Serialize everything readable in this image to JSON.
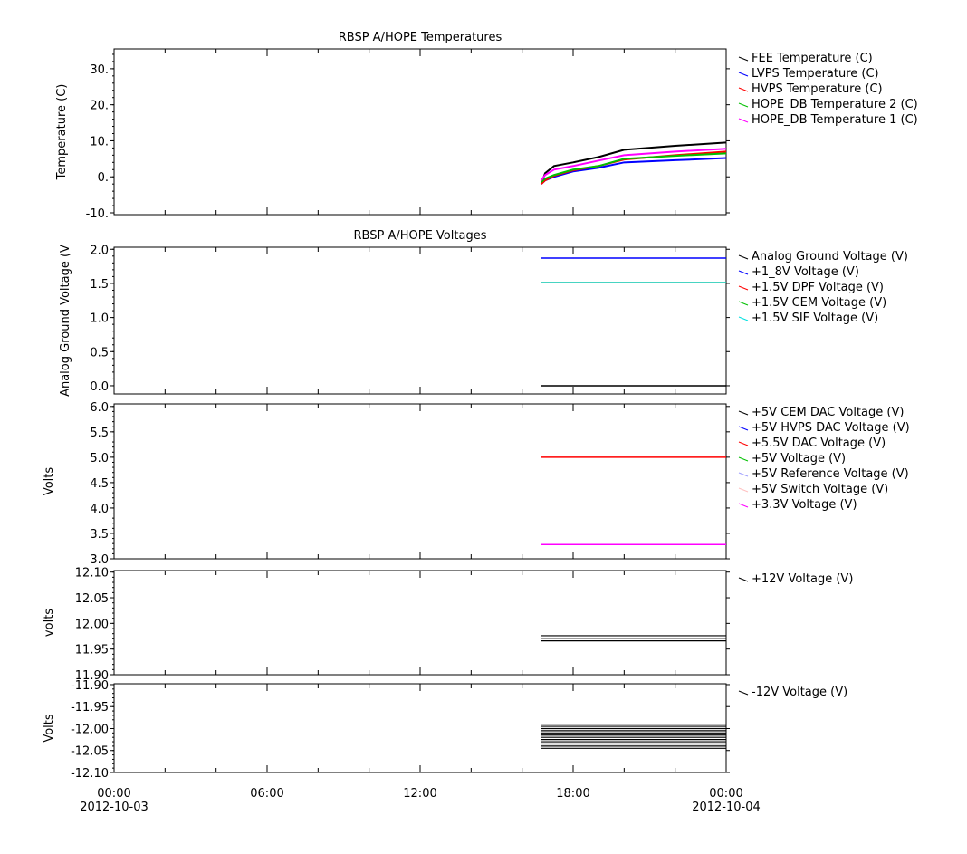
{
  "chart_data": [
    {
      "type": "line",
      "title": "RBSP A/HOPE Temperatures",
      "ylabel": "Temperature (C)",
      "ylim": [
        -10.5,
        35.5
      ],
      "yticks": [
        {
          "v": 30,
          "label": "30."
        },
        {
          "v": 20,
          "label": "20."
        },
        {
          "v": 10,
          "label": "10."
        },
        {
          "v": 0,
          "label": "0."
        },
        {
          "v": -10,
          "label": "-10."
        }
      ],
      "series": [
        {
          "name": "FEE Temperature (C)",
          "color": "#000000",
          "x": [
            16.75,
            16.9,
            17.25,
            18,
            19,
            20,
            22,
            24
          ],
          "y": [
            -2,
            1,
            3,
            4,
            5.5,
            7.5,
            8.6,
            9.5
          ]
        },
        {
          "name": "LVPS Temperature (C)",
          "color": "#0000ff",
          "x": [
            16.75,
            16.9,
            17.25,
            18,
            19,
            20,
            22,
            24
          ],
          "y": [
            -2,
            -1,
            0,
            1.5,
            2.5,
            4,
            4.6,
            5.2
          ]
        },
        {
          "name": "HVPS Temperature (C)",
          "color": "#ff0000",
          "x": [
            16.75,
            16.9,
            17.25,
            18,
            19,
            20,
            22,
            24
          ],
          "y": [
            -2,
            -1,
            0.3,
            1.8,
            3,
            4.8,
            6,
            7
          ]
        },
        {
          "name": "HOPE_DB Temperature 2 (C)",
          "color": "#00c000",
          "x": [
            16.75,
            16.9,
            17.25,
            18,
            19,
            20,
            22,
            24
          ],
          "y": [
            -1.5,
            -0.5,
            0.5,
            2,
            3,
            5,
            5.8,
            6.5
          ]
        },
        {
          "name": "HOPE_DB Temperature 1 (C)",
          "color": "#ff00ff",
          "x": [
            16.75,
            16.9,
            17.25,
            18,
            19,
            20,
            22,
            24
          ],
          "y": [
            -1,
            0.5,
            2,
            3,
            4.5,
            6,
            7,
            7.8
          ]
        }
      ]
    },
    {
      "type": "line",
      "title": "RBSP A/HOPE Voltages",
      "ylabel": "Analog Ground Voltage (V",
      "ylim": [
        -0.12,
        2.03
      ],
      "yticks": [
        {
          "v": 2,
          "label": "2.0"
        },
        {
          "v": 1.5,
          "label": "1.5"
        },
        {
          "v": 1,
          "label": "1.0"
        },
        {
          "v": 0.5,
          "label": "0.5"
        },
        {
          "v": 0,
          "label": "0.0"
        }
      ],
      "series": [
        {
          "name": "Analog Ground Voltage (V)",
          "color": "#000000",
          "x": [
            16.75,
            24
          ],
          "y": [
            0,
            0
          ]
        },
        {
          "name": "+1_8V Voltage (V)",
          "color": "#0000ff",
          "x": [
            16.75,
            24
          ],
          "y": [
            1.87,
            1.87
          ]
        },
        {
          "name": "+1.5V DPF Voltage (V)",
          "color": "#ff0000",
          "x": [
            16.75,
            24
          ],
          "y": [
            1.51,
            1.51
          ]
        },
        {
          "name": "+1.5V CEM Voltage (V)",
          "color": "#00c000",
          "x": [
            16.75,
            24
          ],
          "y": [
            1.51,
            1.51
          ]
        },
        {
          "name": "+1.5V SIF Voltage (V)",
          "color": "#00e0e0",
          "x": [
            16.75,
            24
          ],
          "y": [
            1.51,
            1.51
          ]
        }
      ]
    },
    {
      "type": "line",
      "title": "",
      "ylabel": "Volts",
      "ylim": [
        3.0,
        6.05
      ],
      "yticks": [
        {
          "v": 6,
          "label": "6.0"
        },
        {
          "v": 5.5,
          "label": "5.5"
        },
        {
          "v": 5,
          "label": "5.0"
        },
        {
          "v": 4.5,
          "label": "4.5"
        },
        {
          "v": 4,
          "label": "4.0"
        },
        {
          "v": 3.5,
          "label": "3.5"
        },
        {
          "v": 3,
          "label": "3.0"
        }
      ],
      "series": [
        {
          "name": "+5V CEM DAC Voltage (V)",
          "color": "#000000",
          "x": [],
          "y": []
        },
        {
          "name": "+5V HVPS DAC Voltage (V)",
          "color": "#0000ff",
          "x": [],
          "y": []
        },
        {
          "name": "+5.5V DAC Voltage (V)",
          "color": "#ff0000",
          "x": [
            16.75,
            24
          ],
          "y": [
            5.0,
            5.0
          ]
        },
        {
          "name": "+5V Voltage (V)",
          "color": "#00c000",
          "x": [],
          "y": []
        },
        {
          "name": "+5V Reference Voltage (V)",
          "color": "#a0a0ff",
          "x": [],
          "y": []
        },
        {
          "name": "+5V Switch Voltage (V)",
          "color": "#ffc0c0",
          "x": [],
          "y": []
        },
        {
          "name": "+3.3V Voltage (V)",
          "color": "#ff00ff",
          "x": [
            16.75,
            24
          ],
          "y": [
            3.28,
            3.28
          ]
        }
      ]
    },
    {
      "type": "line",
      "title": "",
      "ylabel": "volts",
      "ylim": [
        11.9,
        12.103
      ],
      "yticks": [
        {
          "v": 12.1,
          "label": "12.10"
        },
        {
          "v": 12.05,
          "label": "12.05"
        },
        {
          "v": 12.0,
          "label": "12.00"
        },
        {
          "v": 11.95,
          "label": "11.95"
        },
        {
          "v": 11.9,
          "label": "11.90"
        }
      ],
      "series": [
        {
          "name": "+12V Voltage (V)",
          "color": "#000000",
          "levels": [
            11.976,
            11.971,
            11.966
          ],
          "x": [
            16.75,
            24
          ]
        }
      ]
    },
    {
      "type": "line",
      "title": "",
      "ylabel": "Volts",
      "ylim": [
        -12.1,
        -11.898
      ],
      "yticks": [
        {
          "v": -11.9,
          "label": "-11.90"
        },
        {
          "v": -11.95,
          "label": "-11.95"
        },
        {
          "v": -12.0,
          "label": "-12.00"
        },
        {
          "v": -12.05,
          "label": "-12.05"
        },
        {
          "v": -12.1,
          "label": "-12.10"
        }
      ],
      "series": [
        {
          "name": "-12V Voltage (V)",
          "color": "#000000",
          "levels": [
            -11.99,
            -11.995,
            -12.0,
            -12.005,
            -12.01,
            -12.015,
            -12.02,
            -12.025,
            -12.03,
            -12.035,
            -12.04,
            -12.045
          ],
          "x": [
            16.75,
            24
          ]
        }
      ]
    }
  ],
  "xaxis": {
    "xlim": [
      0,
      24
    ],
    "ticks": [
      {
        "v": 0,
        "label": "00:00",
        "sub": "2012-10-03"
      },
      {
        "v": 6,
        "label": "06:00",
        "sub": ""
      },
      {
        "v": 12,
        "label": "12:00",
        "sub": ""
      },
      {
        "v": 18,
        "label": "18:00",
        "sub": ""
      },
      {
        "v": 24,
        "label": "00:00",
        "sub": "2012-10-04"
      }
    ]
  }
}
